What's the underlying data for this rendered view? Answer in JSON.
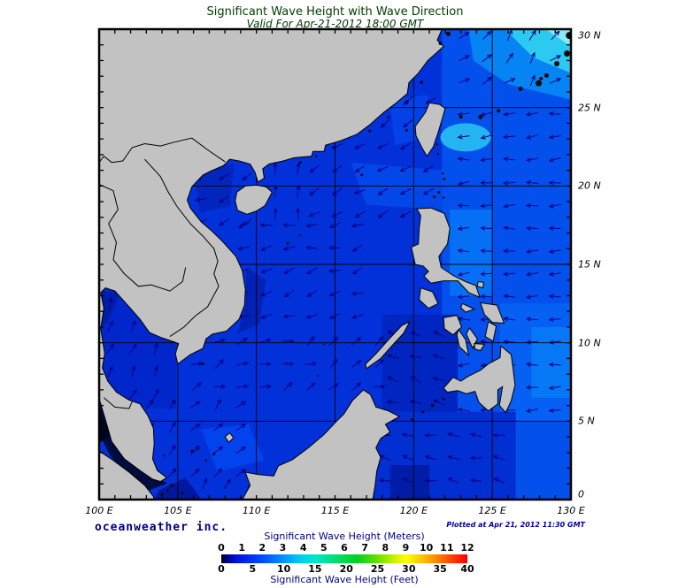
{
  "title": "Significant Wave Height with Wave Direction",
  "subtitle": "Valid For Apr-21-2012 18:00 GMT",
  "branding": "oceanweather inc.",
  "plotted_label": "Plotted at Apr 21, 2012 11:30 GMT",
  "map": {
    "lon_tick_labels": [
      "100 E",
      "105 E",
      "110 E",
      "115 E",
      "120 E",
      "125 E",
      "130 E"
    ],
    "lat_tick_labels": [
      "30 N",
      "25 N",
      "20 N",
      "15 N",
      "10 N",
      "5 N",
      "0"
    ],
    "extent": {
      "lon_min": 100,
      "lon_max": 130,
      "lat_min": 0,
      "lat_max": 30
    },
    "grid_interval_deg": 5,
    "minor_tick_interval_deg": 1,
    "land_color": "#c2c2c2",
    "coast_color": "#000000",
    "ocean_base_color": "#0231da",
    "arrow_color": "#000080",
    "region_shades": {
      "pacific_east": "#0450ec",
      "pacific_bright_ne": "#0684f4",
      "cyan_corner": "#2cc9f0",
      "cyan_corner_bright": "#86e9f3",
      "taiwan_se_patch": "#24b4f2",
      "luzon_east": "#0570f5",
      "philippine_sea": "#0560f3",
      "philippine_sea_bright": "#0678f6",
      "taiwan_strait": "#0342e8",
      "ne_scs": "#0347e9",
      "vietnam_coast_dark": "#0122b4",
      "tonkin_dark": "#0126be",
      "gulf_thailand": "#0127cc",
      "gulf_thailand_dark": "#011ca8",
      "malacca_dark": "#000b3e",
      "malacca_core": "#00051f",
      "south_bright": "#0343ee",
      "sulu_sea": "#0125c0",
      "celebes_sea": "#012fd2",
      "celebes_dark": "#011ca6",
      "sumatra_se_dark": "#0117a0"
    },
    "wave_field": [
      {
        "name": "ryukyu-corner",
        "lon": [
          122.5,
          129.8
        ],
        "lat": [
          26,
          29.8
        ],
        "dir_deg": 45,
        "jitter_deg": 50
      },
      {
        "name": "pacific-north",
        "lon": [
          122.5,
          129.8
        ],
        "lat": [
          21,
          26
        ],
        "dir_deg": 185,
        "jitter_deg": 30
      },
      {
        "name": "pacific-east-strip",
        "lon": [
          122.5,
          129.8
        ],
        "lat": [
          5,
          21
        ],
        "dir_deg": 183,
        "jitter_deg": 25
      },
      {
        "name": "ne-south-china-sea",
        "lon": [
          113,
          122.3
        ],
        "lat": [
          17.5,
          23.3
        ],
        "dir_deg": 207,
        "jitter_deg": 25
      },
      {
        "name": "taiwan-strait",
        "lon": [
          117.5,
          121.5
        ],
        "lat": [
          23.3,
          26.5
        ],
        "dir_deg": 215,
        "jitter_deg": 20
      },
      {
        "name": "east-of-hainan",
        "lon": [
          110.5,
          113
        ],
        "lat": [
          17.5,
          21.8
        ],
        "dir_deg": 88,
        "jitter_deg": 18
      },
      {
        "name": "gulf-of-tonkin",
        "lon": [
          105.8,
          110.5
        ],
        "lat": [
          17,
          21.5
        ],
        "dir_deg": 205,
        "jitter_deg": 35
      },
      {
        "name": "central-scs",
        "lon": [
          108.5,
          117
        ],
        "lat": [
          11,
          17.5
        ],
        "dir_deg": 195,
        "jitter_deg": 45
      },
      {
        "name": "south-central-scs",
        "lon": [
          105.5,
          118
        ],
        "lat": [
          6.5,
          11
        ],
        "dir_deg": 25,
        "jitter_deg": 60
      },
      {
        "name": "far-south-scs",
        "lon": [
          102.5,
          110
        ],
        "lat": [
          1,
          6.5
        ],
        "dir_deg": 50,
        "jitter_deg": 35
      },
      {
        "name": "gulf-of-thailand",
        "lon": [
          100,
          104.5
        ],
        "lat": [
          6,
          13
        ],
        "dir_deg": 70,
        "jitter_deg": 40
      },
      {
        "name": "sulu-sea",
        "lon": [
          118,
          122.5
        ],
        "lat": [
          5.5,
          11.5
        ],
        "dir_deg": 160,
        "jitter_deg": 40
      },
      {
        "name": "celebes-sea",
        "lon": [
          117.5,
          126.5
        ],
        "lat": [
          0.5,
          5.5
        ],
        "dir_deg": 170,
        "jitter_deg": 30
      },
      {
        "name": "java-sea",
        "lon": [
          106,
          117.5
        ],
        "lat": [
          0.3,
          1.8
        ],
        "dir_deg": 60,
        "jitter_deg": 30
      }
    ]
  },
  "colorbar": {
    "meters_label": "Significant Wave Height (Meters)",
    "feet_label": "Significant Wave Height (Feet)",
    "meters_ticks": [
      0,
      1,
      2,
      3,
      4,
      5,
      6,
      7,
      8,
      9,
      10,
      11,
      12
    ],
    "feet_ticks": [
      0,
      5,
      10,
      15,
      20,
      25,
      30,
      35,
      40
    ],
    "meters_max": 12,
    "feet_to_meters": 0.3048,
    "gradient": [
      [
        0,
        "#000000"
      ],
      [
        0.02,
        "#000080"
      ],
      [
        0.06,
        "#0010e0"
      ],
      [
        0.15,
        "#0040ff"
      ],
      [
        0.25,
        "#0090ff"
      ],
      [
        0.32,
        "#00ccf4"
      ],
      [
        0.38,
        "#00e8c8"
      ],
      [
        0.45,
        "#00e080"
      ],
      [
        0.55,
        "#00d020"
      ],
      [
        0.63,
        "#60e000"
      ],
      [
        0.7,
        "#c8f000"
      ],
      [
        0.75,
        "#ffff00"
      ],
      [
        0.81,
        "#ffc800"
      ],
      [
        0.88,
        "#ff8000"
      ],
      [
        0.95,
        "#ff3000"
      ],
      [
        1,
        "#ff0000"
      ]
    ]
  },
  "text_colors": {
    "title": "#004000",
    "axis_labels": "#000000",
    "navy": "#000080"
  }
}
